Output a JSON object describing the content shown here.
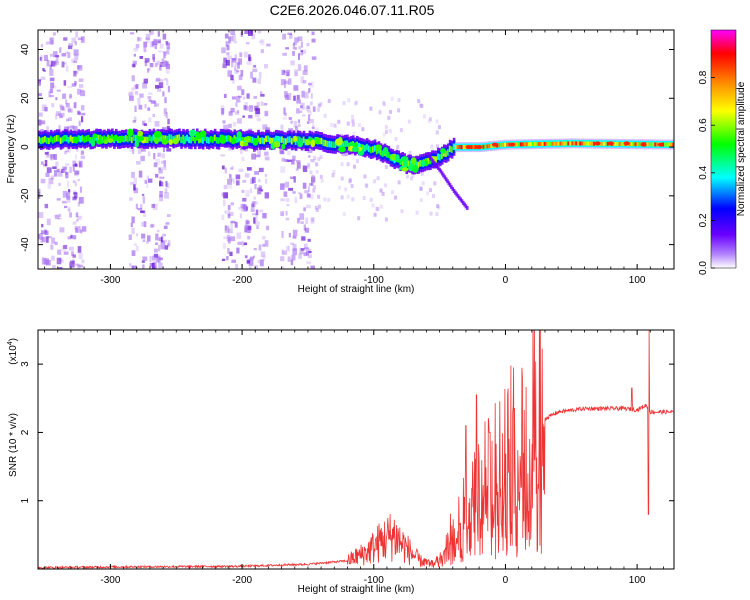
{
  "title": "C2E6.2026.046.07.11.R05",
  "chart_data": [
    {
      "type": "heatmap",
      "title": "C2E6.2026.046.07.11.R05",
      "xlabel": "Height of straight line (km)",
      "ylabel": "Frequency (Hz)",
      "xlim": [
        -355,
        128
      ],
      "ylim": [
        -50,
        48
      ],
      "x_ticks": [
        -300,
        -200,
        -100,
        0,
        100
      ],
      "y_ticks": [
        -40,
        -20,
        0,
        20,
        40
      ],
      "x_tick_labels": [
        "-300",
        "-200",
        "-100",
        "0",
        "100"
      ],
      "y_tick_labels": [
        "-40",
        "-20",
        "0",
        "20",
        "40"
      ],
      "colorbar": {
        "label": "Normalized spectral amplitude",
        "range": [
          0,
          1
        ],
        "ticks": [
          0.0,
          0.2,
          0.4,
          0.6,
          0.8
        ],
        "tick_labels": [
          "0.0",
          "0.2",
          "0.4",
          "0.6",
          "0.8"
        ],
        "colormap": [
          "#ffffff",
          "#7700ff",
          "#0000ff",
          "#00ffff",
          "#00ff00",
          "#ffff00",
          "#ff8800",
          "#ff0000",
          "#ff00ff"
        ]
      },
      "ridge": [
        [
          -355,
          3
        ],
        [
          -300,
          3.5
        ],
        [
          -250,
          3.5
        ],
        [
          -200,
          3
        ],
        [
          -150,
          2.5
        ],
        [
          -120,
          1
        ],
        [
          -100,
          -1
        ],
        [
          -80,
          -6
        ],
        [
          -70,
          -8
        ],
        [
          -60,
          -6
        ],
        [
          -50,
          -4
        ],
        [
          -40,
          0
        ],
        [
          -20,
          0
        ],
        [
          0,
          1
        ],
        [
          50,
          1.5
        ],
        [
          128,
          1
        ]
      ],
      "branch": [
        [
          -60,
          -3
        ],
        [
          -50,
          -10
        ],
        [
          -40,
          -18
        ],
        [
          -30,
          -25
        ]
      ],
      "noise_bands": [
        [
          -355,
          -320
        ],
        [
          -285,
          -255
        ],
        [
          -215,
          -180
        ],
        [
          -170,
          -145
        ]
      ],
      "colors": {
        "ridge_core": "#ff0000",
        "noise": "#8a3ce6"
      }
    },
    {
      "type": "line",
      "xlabel": "Height of straight line (km)",
      "ylabel": "SNR (10 * v/v)",
      "y_scale_label": "(x10",
      "y_scale_exponent": "4",
      "xlim": [
        -355,
        128
      ],
      "ylim": [
        0,
        3.5
      ],
      "x_ticks": [
        -300,
        -200,
        -100,
        0,
        100
      ],
      "y_ticks": [
        1,
        2,
        3
      ],
      "x_tick_labels": [
        "-300",
        "-200",
        "-100",
        "0",
        "100"
      ],
      "y_tick_labels": [
        "1",
        "2",
        "3"
      ],
      "series": [
        {
          "name": "SNR",
          "color": "#ee3333",
          "envelope": [
            [
              -355,
              0.02
            ],
            [
              -300,
              0.03
            ],
            [
              -200,
              0.04
            ],
            [
              -150,
              0.07
            ],
            [
              -120,
              0.12
            ],
            [
              -105,
              0.25
            ],
            [
              -95,
              0.4
            ],
            [
              -85,
              0.5
            ],
            [
              -75,
              0.3
            ],
            [
              -65,
              0.12
            ],
            [
              -55,
              0.08
            ],
            [
              -45,
              0.3
            ],
            [
              -38,
              0.6
            ],
            [
              -30,
              0.85
            ],
            [
              -20,
              1.05
            ],
            [
              -10,
              1.25
            ],
            [
              0,
              1.5
            ],
            [
              10,
              1.75
            ],
            [
              20,
              2.0
            ],
            [
              30,
              2.2
            ],
            [
              40,
              2.3
            ],
            [
              60,
              2.35
            ],
            [
              90,
              2.35
            ],
            [
              100,
              2.33
            ],
            [
              107,
              2.4
            ],
            [
              110,
              2.3
            ],
            [
              128,
              2.3
            ]
          ],
          "spikes": [
            [
              -22,
              2.55
            ],
            [
              -30,
              2.1
            ],
            [
              -12,
              2.0
            ],
            [
              96,
              2.65
            ],
            [
              109,
              3.5
            ],
            [
              108.5,
              0.8
            ]
          ]
        }
      ]
    }
  ]
}
